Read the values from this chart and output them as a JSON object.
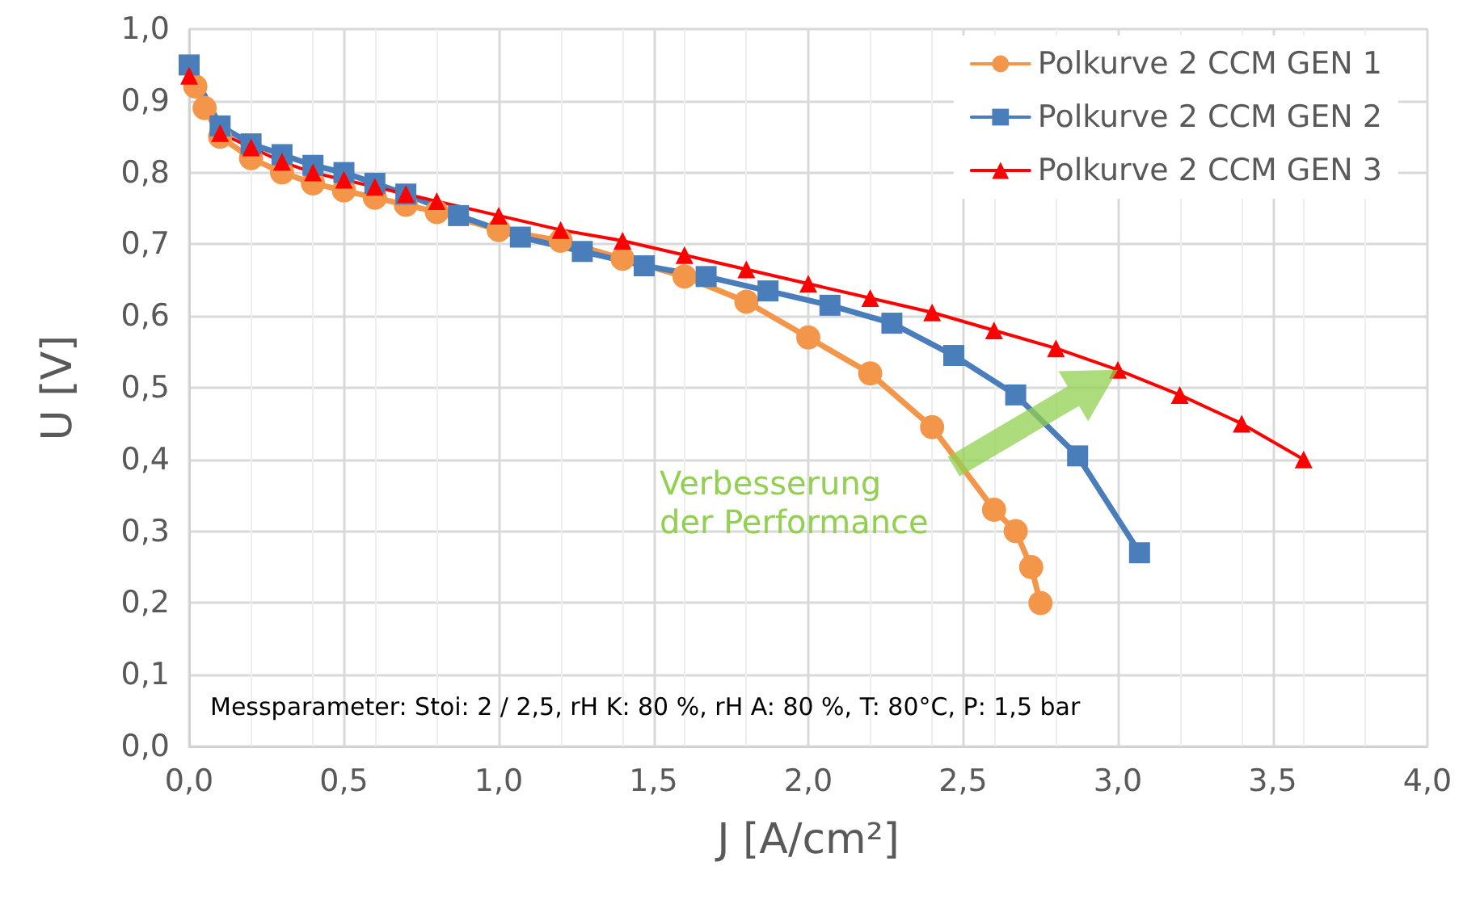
{
  "chart_data": {
    "type": "line",
    "xlabel": "J [A/cm²]",
    "ylabel": "U [V]",
    "xlim": [
      0,
      4
    ],
    "ylim": [
      0,
      1
    ],
    "xticks": [
      {
        "value": 0,
        "label": "0,0"
      },
      {
        "value": 0.5,
        "label": "0,5"
      },
      {
        "value": 1,
        "label": "1,0"
      },
      {
        "value": 1.5,
        "label": "1,5"
      },
      {
        "value": 2,
        "label": "2,0"
      },
      {
        "value": 2.5,
        "label": "2,5"
      },
      {
        "value": 3,
        "label": "3,0"
      },
      {
        "value": 3.5,
        "label": "3,5"
      },
      {
        "value": 4,
        "label": "4,0"
      }
    ],
    "yticks": [
      {
        "value": 0,
        "label": "0,0"
      },
      {
        "value": 0.1,
        "label": "0,1"
      },
      {
        "value": 0.2,
        "label": "0,2"
      },
      {
        "value": 0.3,
        "label": "0,3"
      },
      {
        "value": 0.4,
        "label": "0,4"
      },
      {
        "value": 0.5,
        "label": "0,5"
      },
      {
        "value": 0.6,
        "label": "0,6"
      },
      {
        "value": 0.7,
        "label": "0,7"
      },
      {
        "value": 0.8,
        "label": "0,8"
      },
      {
        "value": 0.9,
        "label": "0,9"
      },
      {
        "value": 1,
        "label": "1,0"
      }
    ],
    "grid": true,
    "legend": "top right",
    "line_style": "solid",
    "annotations": [
      "Verbesserung der Performance",
      "Messparameter: Stoi: 2 / 2,5, rH K: 80 %, rH A: 80 %, T: 80°C, P: 1,5 bar"
    ],
    "series": [
      {
        "name": "Polkurve 2 CCM GEN 1",
        "color": "#f4964a",
        "marker": "circle",
        "x": [
          0.02,
          0.05,
          0.1,
          0.2,
          0.3,
          0.4,
          0.5,
          0.6,
          0.7,
          0.8,
          1.0,
          1.2,
          1.4,
          1.6,
          1.8,
          2.0,
          2.2,
          2.4,
          2.6,
          2.67,
          2.72,
          2.75
        ],
        "values": [
          0.92,
          0.89,
          0.85,
          0.82,
          0.8,
          0.785,
          0.775,
          0.765,
          0.755,
          0.745,
          0.72,
          0.705,
          0.68,
          0.655,
          0.62,
          0.57,
          0.52,
          0.445,
          0.33,
          0.3,
          0.25,
          0.2
        ]
      },
      {
        "name": "Polkurve 2 CCM GEN 2",
        "color": "#4a7ebb",
        "marker": "square",
        "x": [
          0,
          0.1,
          0.2,
          0.3,
          0.4,
          0.5,
          0.6,
          0.7,
          0.87,
          1.07,
          1.27,
          1.47,
          1.67,
          1.87,
          2.07,
          2.27,
          2.47,
          2.67,
          2.87,
          3.07
        ],
        "values": [
          0.95,
          0.865,
          0.84,
          0.825,
          0.81,
          0.8,
          0.785,
          0.77,
          0.74,
          0.71,
          0.69,
          0.67,
          0.655,
          0.635,
          0.615,
          0.59,
          0.545,
          0.49,
          0.405,
          0.27
        ]
      },
      {
        "name": "Polkurve 2 CCM GEN 3",
        "color": "#ff0000",
        "marker": "triangle",
        "x": [
          0,
          0.1,
          0.2,
          0.3,
          0.4,
          0.5,
          0.6,
          0.7,
          0.8,
          1.0,
          1.2,
          1.4,
          1.6,
          1.8,
          2.0,
          2.2,
          2.4,
          2.6,
          2.8,
          3.0,
          3.2,
          3.4,
          3.6
        ],
        "values": [
          0.935,
          0.855,
          0.835,
          0.815,
          0.8,
          0.79,
          0.78,
          0.77,
          0.76,
          0.74,
          0.72,
          0.705,
          0.685,
          0.665,
          0.645,
          0.625,
          0.605,
          0.58,
          0.555,
          0.525,
          0.49,
          0.45,
          0.4
        ]
      }
    ]
  }
}
